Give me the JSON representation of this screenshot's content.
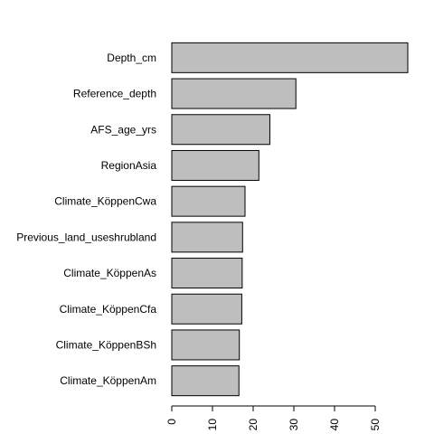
{
  "chart_data": {
    "type": "bar",
    "orientation": "horizontal",
    "title": "",
    "xlabel": "",
    "ylabel": "",
    "categories": [
      "Depth_cm",
      "Reference_depth",
      "AFS_age_yrs",
      "RegionAsia",
      "Climate_KöppenCwa",
      "Previous_land_useshrubland",
      "Climate_KöppenAs",
      "Climate_KöppenCfa",
      "Climate_KöppenBSh",
      "Climate_KöppenAm"
    ],
    "values": [
      58.0,
      30.5,
      24.1,
      21.4,
      18.0,
      17.4,
      17.3,
      17.2,
      16.6,
      16.5
    ],
    "xlim": [
      0,
      58
    ],
    "xticks": [
      0,
      10,
      20,
      30,
      40,
      50
    ],
    "grid": false,
    "legend": "none",
    "bar_color": "#bebebe",
    "bar_border_color": "#000000"
  }
}
